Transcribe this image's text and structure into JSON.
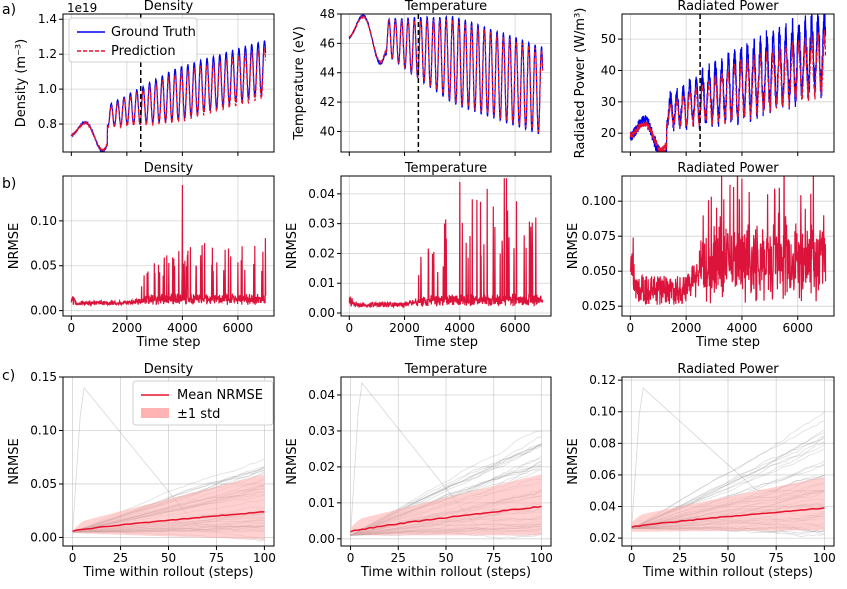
{
  "figure": {
    "rows": [
      {
        "label": "a)"
      },
      {
        "label": "b)"
      },
      {
        "label": "c)"
      }
    ]
  },
  "chart_data": [
    {
      "type": "line",
      "row": "a",
      "title": "Density",
      "xlabel": "",
      "ylabel": "Density (m⁻³)",
      "offset_text": "1e19",
      "xlim": [
        -300,
        7300
      ],
      "ylim": [
        0.64,
        1.43
      ],
      "xticks": [
        0,
        2000,
        4000,
        6000
      ],
      "xtick_labels": [
        "",
        "",
        "",
        ""
      ],
      "yticks": [
        0.8,
        1.0,
        1.2,
        1.4
      ],
      "ytick_labels": [
        "0.8",
        "1.0",
        "1.2",
        "1.4"
      ],
      "legend": {
        "position": "top-left",
        "entries": [
          "Ground Truth",
          "Prediction"
        ]
      },
      "vline_x": 2500,
      "series": [
        {
          "name": "Ground Truth",
          "color": "#0000ee",
          "style": "solid",
          "shape": {
            "base": 0.75,
            "amp": 0.15,
            "trend": 0.05,
            "period": 230,
            "noise": 0.005
          }
        },
        {
          "name": "Prediction",
          "color": "#e8112d",
          "style": "dashed",
          "shape": {
            "base": 0.75,
            "amp": 0.14,
            "trend": 0.045,
            "period": 230,
            "noise": 0.004
          }
        }
      ]
    },
    {
      "type": "line",
      "row": "a",
      "title": "Temperature",
      "xlabel": "",
      "ylabel": "Temperature (eV)",
      "xlim": [
        -300,
        7300
      ],
      "ylim": [
        38.6,
        48.0
      ],
      "xticks": [
        0,
        2000,
        4000,
        6000
      ],
      "xtick_labels": [
        "",
        "",
        "",
        ""
      ],
      "yticks": [
        40,
        42,
        44,
        46,
        48
      ],
      "ytick_labels": [
        "40",
        "42",
        "44",
        "46",
        "48"
      ],
      "vline_x": 2500,
      "series": [
        {
          "name": "Ground Truth",
          "color": "#0000ee",
          "style": "solid",
          "shape": {
            "base": 46.7,
            "amp": 3.0,
            "trend": -0.00065,
            "period": 230,
            "noise": 0.05
          }
        },
        {
          "name": "Prediction",
          "color": "#e8112d",
          "style": "dashed",
          "shape": {
            "base": 46.7,
            "amp": 2.8,
            "trend": -0.00065,
            "period": 230,
            "noise": 0.04
          }
        }
      ]
    },
    {
      "type": "line",
      "row": "a",
      "title": "Radiated Power",
      "xlabel": "",
      "ylabel": "Radiated Power (W/m³)",
      "xlim": [
        -300,
        7300
      ],
      "ylim": [
        14,
        58
      ],
      "xticks": [
        0,
        2000,
        4000,
        6000
      ],
      "xtick_labels": [
        "",
        "",
        "",
        ""
      ],
      "yticks": [
        20,
        30,
        40,
        50
      ],
      "ytick_labels": [
        "20",
        "30",
        "40",
        "50"
      ],
      "vline_x": 2500,
      "series": [
        {
          "name": "Ground Truth",
          "color": "#0000ee",
          "style": "solid",
          "shape": {
            "base": 20,
            "amp": 10,
            "trend": 0.0035,
            "period": 230,
            "noise": 1.6
          }
        },
        {
          "name": "Prediction",
          "color": "#e8112d",
          "style": "dashed",
          "shape": {
            "base": 20,
            "amp": 8,
            "trend": 0.003,
            "period": 230,
            "noise": 0.9
          }
        }
      ]
    },
    {
      "type": "line",
      "row": "b",
      "title": "Density",
      "xlabel": "Time step",
      "ylabel": "NRMSE",
      "xlim": [
        -300,
        7300
      ],
      "ylim": [
        -0.006,
        0.15
      ],
      "xticks": [
        0,
        2000,
        4000,
        6000
      ],
      "xtick_labels": [
        "0",
        "2000",
        "4000",
        "6000"
      ],
      "yticks": [
        0.0,
        0.05,
        0.1
      ],
      "ytick_labels": [
        "0.00",
        "0.05",
        "0.10"
      ],
      "series": [
        {
          "name": "NRMSE",
          "color": "#dc143c",
          "shape": {
            "floor": 0.006,
            "spike": 0.05,
            "peak_x": 4000,
            "peak_y": 0.14,
            "onset": 2500
          }
        }
      ]
    },
    {
      "type": "line",
      "row": "b",
      "title": "Temperature",
      "xlabel": "Time step",
      "ylabel": "NRMSE",
      "xlim": [
        -300,
        7300
      ],
      "ylim": [
        -0.001,
        0.046
      ],
      "xticks": [
        0,
        2000,
        4000,
        6000
      ],
      "xtick_labels": [
        "0",
        "2000",
        "4000",
        "6000"
      ],
      "yticks": [
        0.0,
        0.01,
        0.02,
        0.03,
        0.04
      ],
      "ytick_labels": [
        "0.00",
        "0.01",
        "0.02",
        "0.03",
        "0.04"
      ],
      "series": [
        {
          "name": "NRMSE",
          "color": "#dc143c",
          "shape": {
            "floor": 0.002,
            "spike": 0.03,
            "peak_x": 4000,
            "peak_y": 0.044,
            "onset": 2500
          }
        }
      ]
    },
    {
      "type": "line",
      "row": "b",
      "title": "Radiated Power",
      "xlabel": "Time step",
      "ylabel": "NRMSE",
      "xlim": [
        -300,
        7300
      ],
      "ylim": [
        0.018,
        0.118
      ],
      "xticks": [
        0,
        2000,
        4000,
        6000
      ],
      "xtick_labels": [
        "0",
        "2000",
        "4000",
        "6000"
      ],
      "yticks": [
        0.025,
        0.05,
        0.075,
        0.1
      ],
      "ytick_labels": [
        "0.025",
        "0.050",
        "0.075",
        "0.100"
      ],
      "series": [
        {
          "name": "NRMSE",
          "color": "#dc143c",
          "shape": {
            "floor": 0.026,
            "spike": 0.055,
            "peak_x": 4000,
            "peak_y": 0.116,
            "onset": 2500
          }
        }
      ]
    },
    {
      "type": "line",
      "row": "c",
      "title": "Density",
      "xlabel": "Time within rollout (steps)",
      "ylabel": "NRMSE",
      "xlim": [
        -5,
        105
      ],
      "ylim": [
        -0.008,
        0.15
      ],
      "xticks": [
        0,
        25,
        50,
        75,
        100
      ],
      "xtick_labels": [
        "0",
        "25",
        "50",
        "75",
        "100"
      ],
      "yticks": [
        0.0,
        0.05,
        0.1,
        0.15
      ],
      "ytick_labels": [
        "0.00",
        "0.05",
        "0.10",
        "0.15"
      ],
      "legend": {
        "position": "top-center",
        "entries": [
          "Mean NRMSE",
          "±1 std"
        ]
      },
      "mean": {
        "start": 0.006,
        "end": 0.024,
        "color": "#e8112d"
      },
      "std_band": {
        "lower_start": 0.004,
        "lower_end": -0.002,
        "upper_start": 0.006,
        "upper_end": 0.052,
        "color": "#ffb3b3"
      },
      "rollouts": {
        "count": 45,
        "color": "#8c8c8c",
        "start": 0.005,
        "end_min": 0.005,
        "end_max": 0.075,
        "outlier_peak": 0.142
      }
    },
    {
      "type": "line",
      "row": "c",
      "title": "Temperature",
      "xlabel": "Time within rollout (steps)",
      "ylabel": "NRMSE",
      "xlim": [
        -5,
        105
      ],
      "ylim": [
        -0.002,
        0.045
      ],
      "xticks": [
        0,
        25,
        50,
        75,
        100
      ],
      "xtick_labels": [
        "0",
        "25",
        "50",
        "75",
        "100"
      ],
      "yticks": [
        0.0,
        0.01,
        0.02,
        0.03,
        0.04
      ],
      "ytick_labels": [
        "0.00",
        "0.01",
        "0.02",
        "0.03",
        "0.04"
      ],
      "mean": {
        "start": 0.002,
        "end": 0.009,
        "color": "#e8112d"
      },
      "std_band": {
        "lower_start": 0.001,
        "lower_end": 0.001,
        "upper_start": 0.003,
        "upper_end": 0.016,
        "color": "#ffb3b3"
      },
      "rollouts": {
        "count": 45,
        "color": "#8c8c8c",
        "start": 0.001,
        "end_min": 0.002,
        "end_max": 0.031,
        "outlier_peak": 0.044
      }
    },
    {
      "type": "line",
      "row": "c",
      "title": "Radiated Power",
      "xlabel": "Time within rollout (steps)",
      "ylabel": "NRMSE",
      "xlim": [
        -5,
        105
      ],
      "ylim": [
        0.015,
        0.122
      ],
      "xticks": [
        0,
        25,
        50,
        75,
        100
      ],
      "xtick_labels": [
        "0",
        "25",
        "50",
        "75",
        "100"
      ],
      "yticks": [
        0.02,
        0.04,
        0.06,
        0.08,
        0.1,
        0.12
      ],
      "ytick_labels": [
        "0.02",
        "0.04",
        "0.06",
        "0.08",
        "0.10",
        "0.12"
      ],
      "mean": {
        "start": 0.027,
        "end": 0.039,
        "color": "#e8112d"
      },
      "std_band": {
        "lower_start": 0.024,
        "lower_end": 0.025,
        "upper_start": 0.03,
        "upper_end": 0.055,
        "color": "#ffb3b3"
      },
      "rollouts": {
        "count": 45,
        "color": "#8c8c8c",
        "start": 0.026,
        "end_min": 0.025,
        "end_max": 0.098,
        "outlier_peak": 0.116
      }
    }
  ]
}
